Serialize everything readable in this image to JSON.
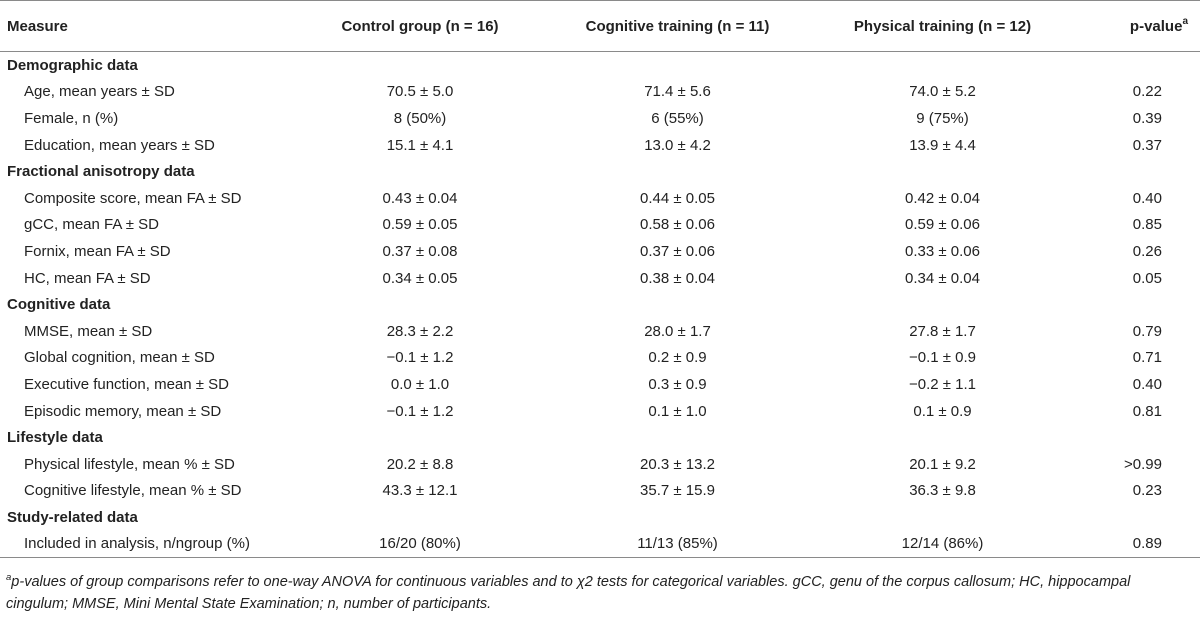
{
  "table": {
    "headers": [
      "Measure",
      "Control group (n = 16)",
      "Cognitive training (n = 11)",
      "Physical training (n = 12)",
      "p-value",
      "a"
    ],
    "sections": [
      {
        "title": "Demographic data",
        "rows": [
          [
            "Age, mean years ± SD",
            "70.5 ± 5.0",
            "71.4 ± 5.6",
            "74.0 ± 5.2",
            "0.22"
          ],
          [
            "Female, n (%)",
            "8 (50%)",
            "6 (55%)",
            "9 (75%)",
            "0.39"
          ],
          [
            "Education, mean years ± SD",
            "15.1 ± 4.1",
            "13.0 ± 4.2",
            "13.9 ± 4.4",
            "0.37"
          ]
        ]
      },
      {
        "title": "Fractional anisotropy data",
        "rows": [
          [
            "Composite score, mean FA ± SD",
            "0.43 ± 0.04",
            "0.44 ± 0.05",
            "0.42 ± 0.04",
            "0.40"
          ],
          [
            "gCC, mean FA ± SD",
            "0.59 ± 0.05",
            "0.58 ± 0.06",
            "0.59 ± 0.06",
            "0.85"
          ],
          [
            "Fornix, mean FA ± SD",
            "0.37 ± 0.08",
            "0.37 ± 0.06",
            "0.33 ± 0.06",
            "0.26"
          ],
          [
            "HC, mean FA ± SD",
            "0.34 ± 0.05",
            "0.38 ± 0.04",
            "0.34 ± 0.04",
            "0.05"
          ]
        ]
      },
      {
        "title": "Cognitive data",
        "rows": [
          [
            "MMSE, mean ± SD",
            "28.3 ± 2.2",
            "28.0 ± 1.7",
            "27.8 ± 1.7",
            "0.79"
          ],
          [
            "Global cognition, mean ± SD",
            "−0.1 ± 1.2",
            "0.2 ± 0.9",
            "−0.1 ± 0.9",
            "0.71"
          ],
          [
            "Executive function, mean ± SD",
            "0.0 ± 1.0",
            "0.3 ± 0.9",
            "−0.2 ± 1.1",
            "0.40"
          ],
          [
            "Episodic memory, mean ± SD",
            "−0.1 ± 1.2",
            "0.1 ± 1.0",
            "0.1 ± 0.9",
            "0.81"
          ]
        ]
      },
      {
        "title": "Lifestyle data",
        "rows": [
          [
            "Physical lifestyle, mean % ± SD",
            "20.2 ± 8.8",
            "20.3 ± 13.2",
            "20.1 ± 9.2",
            ">0.99"
          ],
          [
            "Cognitive lifestyle, mean % ± SD",
            "43.3 ± 12.1",
            "35.7 ± 15.9",
            "36.3 ± 9.8",
            "0.23"
          ]
        ]
      },
      {
        "title": "Study-related data",
        "rows": [
          [
            "Included in analysis, n/ngroup (%)",
            "16/20 (80%)",
            "11/13 (85%)",
            "12/14 (86%)",
            "0.89"
          ]
        ]
      }
    ]
  },
  "footnote": {
    "marker": "a",
    "text": "p-values of group comparisons refer to one-way ANOVA for continuous variables and to χ2 tests for categorical variables. gCC, genu of the corpus callosum; HC, hippocampal cingulum; MMSE, Mini Mental State Examination; n, number of participants."
  }
}
